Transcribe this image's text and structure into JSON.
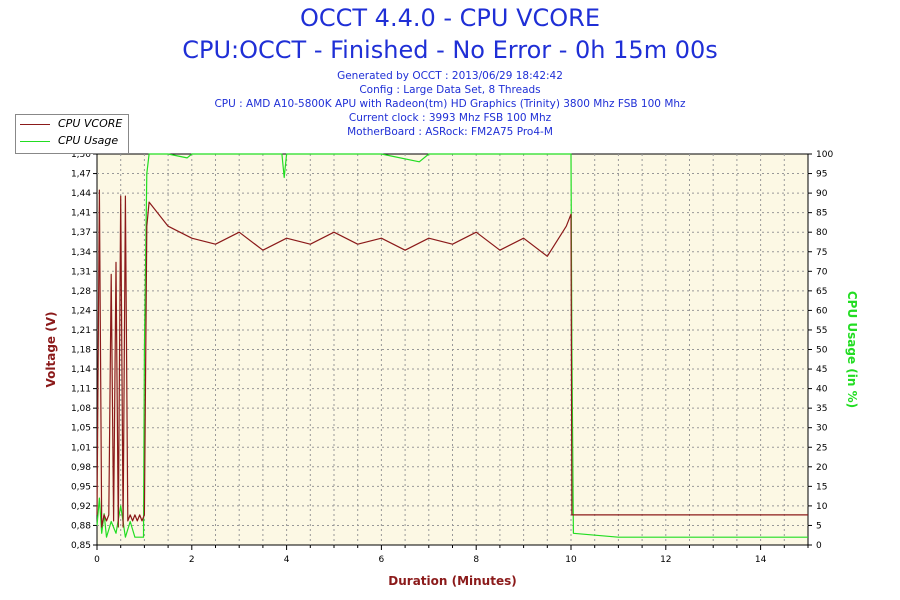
{
  "header": {
    "title": "OCCT 4.4.0 - CPU VCORE",
    "subtitle": "CPU:OCCT - Finished - No Error - 0h 15m 00s",
    "lines": [
      "Generated by OCCT : 2013/06/29 18:42:42",
      "Config : Large Data Set, 8 Threads",
      "CPU : AMD A10-5800K APU with Radeon(tm) HD Graphics (Trinity) 3800 Mhz FSB 100 Mhz",
      "Current clock : 3993 Mhz FSB 100 Mhz",
      "MotherBoard : ASRock: FM2A75 Pro4-M"
    ]
  },
  "legend": [
    {
      "label": "CPU VCORE",
      "color": "#8b1a1a"
    },
    {
      "label": "CPU Usage",
      "color": "#22dd22"
    }
  ],
  "colors": {
    "vcore": "#8b1a1a",
    "usage": "#22dd22",
    "plot_bg": "#fcf8e4",
    "grid": "#999999",
    "title": "#1f2fd6"
  },
  "chart_data": {
    "type": "line",
    "xlabel": "Duration (Minutes)",
    "ylabel_left": "Voltage (V)",
    "ylabel_right": "CPU Usage (in %)",
    "xlim": [
      0,
      15
    ],
    "ylim_left": [
      0.85,
      1.5
    ],
    "ylim_right": [
      0,
      100
    ],
    "x_ticks": [
      "0",
      "2",
      "4",
      "6",
      "8",
      "10",
      "12",
      "14"
    ],
    "y_left_ticks": [
      "0,85",
      "0,88",
      "0,92",
      "0,95",
      "0,98",
      "1,01",
      "1,05",
      "1,08",
      "1,11",
      "1,14",
      "1,18",
      "1,21",
      "1,24",
      "1,28",
      "1,31",
      "1,34",
      "1,37",
      "1,41",
      "1,44",
      "1,47",
      "1,50"
    ],
    "y_right_ticks": [
      "0",
      "5",
      "10",
      "15",
      "20",
      "25",
      "30",
      "35",
      "40",
      "45",
      "50",
      "55",
      "60",
      "65",
      "70",
      "75",
      "80",
      "85",
      "90",
      "95",
      "100"
    ],
    "grid": true,
    "legend_position": "top-left",
    "series": [
      {
        "name": "CPU VCORE",
        "axis": "left",
        "x": [
          0,
          0.05,
          0.1,
          0.15,
          0.2,
          0.25,
          0.3,
          0.35,
          0.4,
          0.45,
          0.5,
          0.55,
          0.6,
          0.65,
          0.7,
          0.75,
          0.8,
          0.85,
          0.9,
          0.95,
          1.0,
          1.05,
          1.1,
          1.5,
          2.0,
          2.5,
          3.0,
          3.5,
          4.0,
          4.5,
          5.0,
          5.5,
          6.0,
          6.5,
          7.0,
          7.5,
          8.0,
          8.5,
          9.0,
          9.5,
          9.9,
          10.0,
          10.02,
          10.05,
          11.0,
          12.0,
          13.0,
          14.0,
          15.0
        ],
        "values": [
          0.9,
          1.44,
          0.88,
          0.9,
          0.89,
          0.9,
          1.3,
          0.89,
          1.32,
          0.88,
          1.43,
          0.88,
          1.43,
          0.89,
          0.9,
          0.89,
          0.9,
          0.89,
          0.9,
          0.89,
          0.9,
          1.38,
          1.42,
          1.38,
          1.36,
          1.35,
          1.37,
          1.34,
          1.36,
          1.35,
          1.37,
          1.35,
          1.36,
          1.34,
          1.36,
          1.35,
          1.37,
          1.34,
          1.36,
          1.33,
          1.38,
          1.4,
          0.9,
          0.9,
          0.9,
          0.9,
          0.9,
          0.9,
          0.9
        ]
      },
      {
        "name": "CPU Usage",
        "axis": "right",
        "x": [
          0,
          0.05,
          0.1,
          0.15,
          0.2,
          0.3,
          0.4,
          0.5,
          0.6,
          0.7,
          0.8,
          0.9,
          0.98,
          1.0,
          1.05,
          1.1,
          1.5,
          1.9,
          2.0,
          3.0,
          3.9,
          3.95,
          4.0,
          5.0,
          6.0,
          6.8,
          7.0,
          8.0,
          9.0,
          9.9,
          10.0,
          10.02,
          10.05,
          11.0,
          12.0,
          13.0,
          14.0,
          15.0
        ],
        "values": [
          5,
          12,
          3,
          8,
          2,
          6,
          3,
          10,
          2,
          6,
          2,
          2,
          2,
          50,
          95,
          100,
          100,
          99,
          100,
          100,
          100,
          94,
          100,
          100,
          100,
          98,
          100,
          100,
          100,
          100,
          100,
          50,
          3,
          2,
          2,
          2,
          2,
          2
        ]
      }
    ]
  }
}
